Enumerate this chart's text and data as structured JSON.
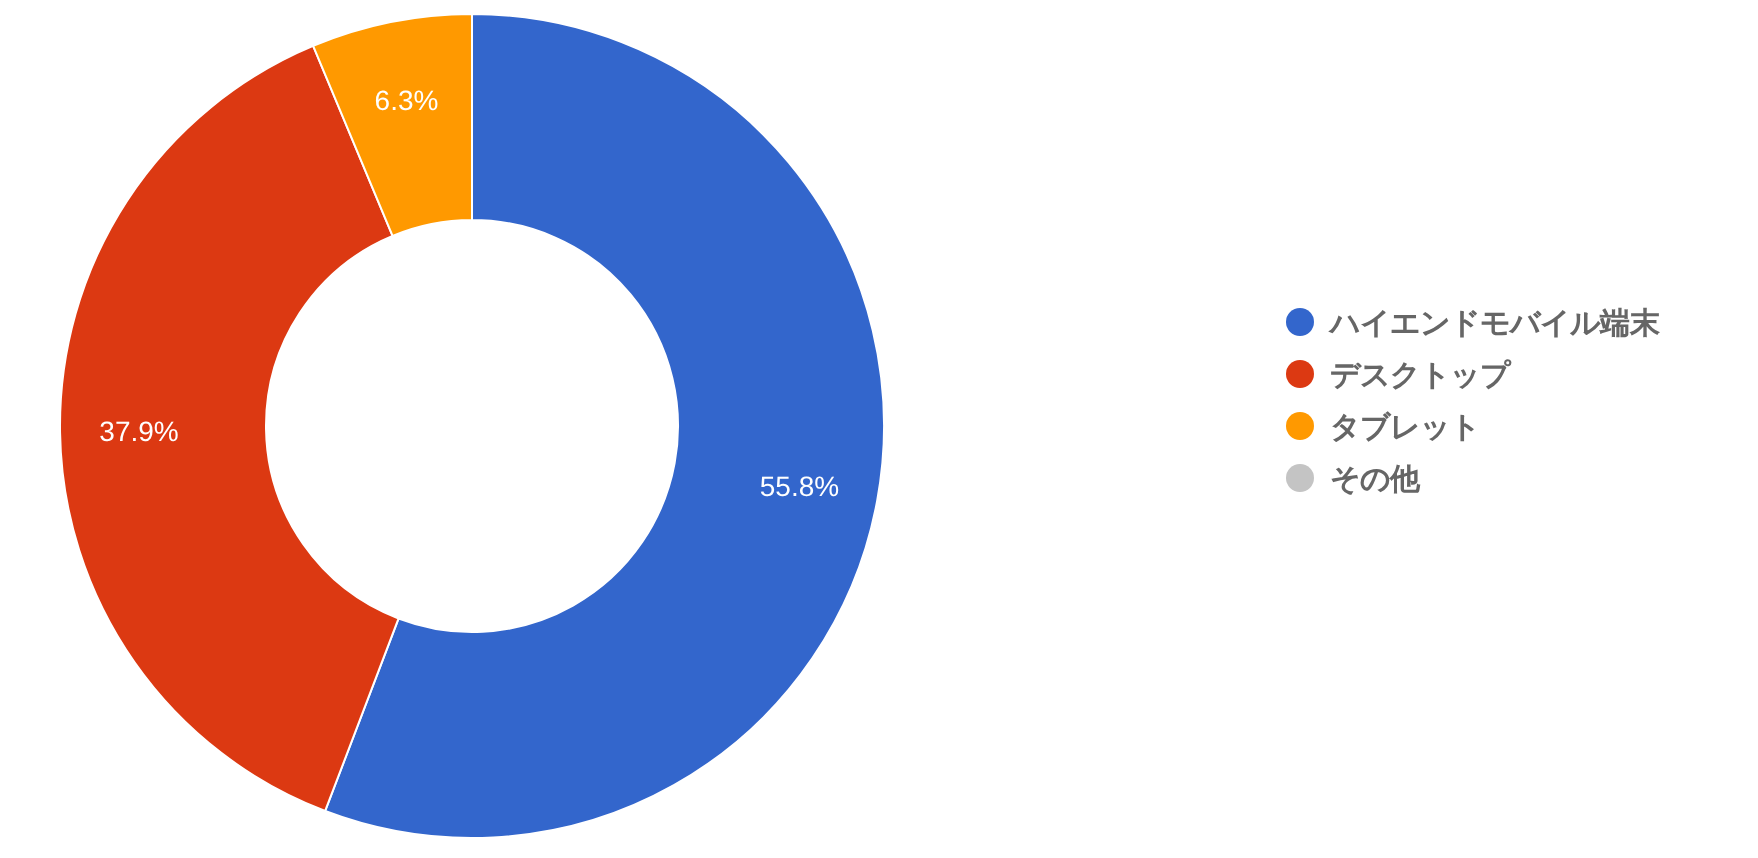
{
  "chart_data": {
    "type": "donut",
    "categories": [
      "ハイエンドモバイル端末",
      "デスクトップ",
      "タブレット",
      "その他"
    ],
    "values": [
      55.8,
      37.9,
      6.3,
      0
    ],
    "colors": [
      "#3366cc",
      "#dc3912",
      "#ff9900",
      "#c4c4c4"
    ],
    "value_labels": [
      "55.8%",
      "37.9%",
      "6.3%",
      null
    ],
    "legend": "right"
  }
}
